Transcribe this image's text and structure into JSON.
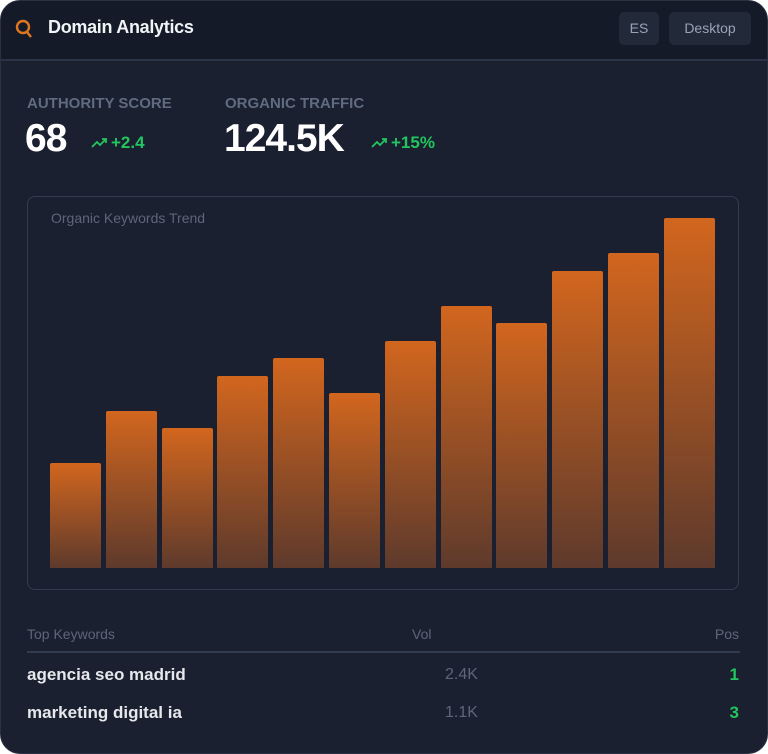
{
  "header": {
    "title": "Domain Analytics",
    "icon": "search-icon",
    "lang": "ES",
    "device": "Desktop"
  },
  "metrics": [
    {
      "label": "AUTHORITY SCORE",
      "value": "68",
      "delta": "+2.4"
    },
    {
      "label": "ORGANIC TRAFFIC",
      "value": "124.5K",
      "delta": "+15%"
    }
  ],
  "colors": {
    "accent": "#d2661e",
    "positive": "#22c55e"
  },
  "chart_data": {
    "type": "bar",
    "title": "Organic Keywords Trend",
    "values_relative_percent": [
      30,
      45,
      40,
      55,
      60,
      50,
      65,
      75,
      70,
      85,
      90,
      100
    ],
    "grid": false
  },
  "keywords": {
    "headers": {
      "keyword": "Top Keywords",
      "vol": "Vol",
      "pos": "Pos"
    },
    "rows": [
      {
        "keyword": "agencia seo madrid",
        "vol": "2.4K",
        "pos": "1"
      },
      {
        "keyword": "marketing digital ia",
        "vol": "1.1K",
        "pos": "3"
      }
    ]
  }
}
